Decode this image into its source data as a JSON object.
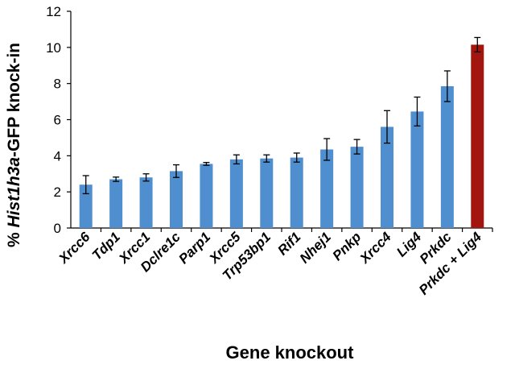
{
  "chart_data": {
    "type": "bar",
    "categories": [
      "Xrcc6",
      "Tdp1",
      "Xrcc1",
      "Dclre1c",
      "Parp1",
      "Xrcc5",
      "Trp53bp1",
      "Rif1",
      "Nhej1",
      "Pnkp",
      "Xrcc4",
      "Lig4",
      "Prkdc",
      "Prkdc + Lig4"
    ],
    "values": [
      2.4,
      2.7,
      2.8,
      3.15,
      3.55,
      3.8,
      3.85,
      3.9,
      4.35,
      4.5,
      5.6,
      6.45,
      7.85,
      10.15
    ],
    "errors": [
      0.5,
      0.12,
      0.2,
      0.35,
      0.08,
      0.25,
      0.2,
      0.25,
      0.6,
      0.4,
      0.9,
      0.8,
      0.85,
      0.4
    ],
    "ylim": [
      0,
      12
    ],
    "yticks": [
      0,
      2,
      4,
      6,
      8,
      10,
      12
    ],
    "xlabel": "Gene knockout",
    "ylabel": {
      "prefix": "% ",
      "gene": "Hist1h3a",
      "suffix": "-GFP knock-in"
    },
    "grid": false,
    "colors": {
      "bar": "#4f8fd0",
      "highlight_bar": "#a3150f",
      "axis": "#000000"
    },
    "highlight_index": 13
  }
}
